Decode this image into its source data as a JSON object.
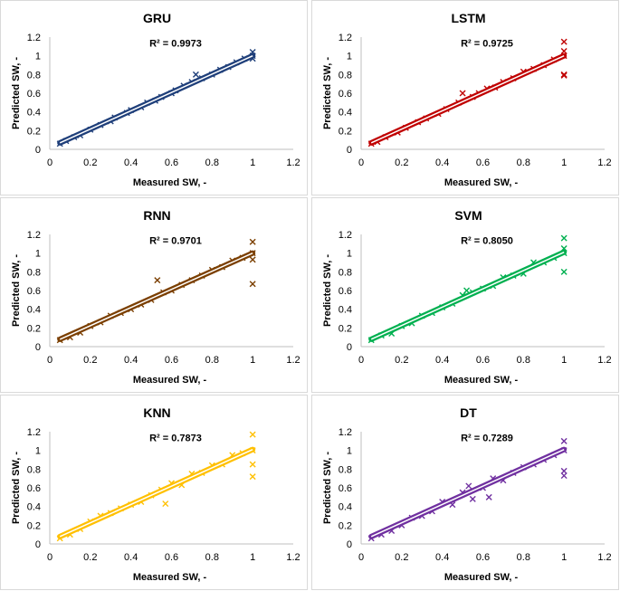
{
  "chart_data": [
    {
      "type": "scatter",
      "title": "GRU",
      "xlabel": "Measured SW, -",
      "ylabel": "Predicted SW, -",
      "xlim": [
        0,
        1.2
      ],
      "ylim": [
        0,
        1.2
      ],
      "xticks": [
        "0",
        "0.2",
        "0.4",
        "0.6",
        "0.8",
        "1",
        "1.2"
      ],
      "yticks": [
        "0",
        "0.2",
        "0.4",
        "0.6",
        "0.8",
        "1",
        "1.2"
      ],
      "r2_label": "R² = 0.9973",
      "r2": 0.9973,
      "color": "#1f3f7a",
      "trendline": {
        "slope": 0.98,
        "intercept": 0.02
      },
      "points": [
        [
          0.05,
          0.06
        ],
        [
          0.08,
          0.09
        ],
        [
          0.12,
          0.13
        ],
        [
          0.15,
          0.15
        ],
        [
          0.2,
          0.21
        ],
        [
          0.25,
          0.26
        ],
        [
          0.3,
          0.3
        ],
        [
          0.32,
          0.34
        ],
        [
          0.38,
          0.39
        ],
        [
          0.4,
          0.42
        ],
        [
          0.45,
          0.45
        ],
        [
          0.48,
          0.5
        ],
        [
          0.52,
          0.52
        ],
        [
          0.55,
          0.56
        ],
        [
          0.6,
          0.6
        ],
        [
          0.62,
          0.63
        ],
        [
          0.66,
          0.68
        ],
        [
          0.7,
          0.72
        ],
        [
          0.72,
          0.8
        ],
        [
          0.75,
          0.76
        ],
        [
          0.8,
          0.8
        ],
        [
          0.84,
          0.85
        ],
        [
          0.88,
          0.88
        ],
        [
          0.92,
          0.93
        ],
        [
          0.96,
          0.97
        ],
        [
          1.0,
          1.0
        ],
        [
          1.0,
          1.04
        ],
        [
          1.0,
          0.97
        ]
      ]
    },
    {
      "type": "scatter",
      "title": "LSTM",
      "xlabel": "Measured SW, -",
      "ylabel": "Predicted SW, -",
      "xlim": [
        0,
        1.2
      ],
      "ylim": [
        0,
        1.2
      ],
      "xticks": [
        "0",
        "0.2",
        "0.4",
        "0.6",
        "0.8",
        "1",
        "1.2"
      ],
      "yticks": [
        "0",
        "0.2",
        "0.4",
        "0.6",
        "0.8",
        "1",
        "1.2"
      ],
      "r2_label": "R² = 0.9725",
      "r2": 0.9725,
      "color": "#c00000",
      "trendline": {
        "slope": 0.98,
        "intercept": 0.02
      },
      "points": [
        [
          0.05,
          0.06
        ],
        [
          0.08,
          0.08
        ],
        [
          0.12,
          0.13
        ],
        [
          0.18,
          0.18
        ],
        [
          0.22,
          0.23
        ],
        [
          0.28,
          0.29
        ],
        [
          0.32,
          0.33
        ],
        [
          0.38,
          0.38
        ],
        [
          0.42,
          0.43
        ],
        [
          0.48,
          0.5
        ],
        [
          0.5,
          0.6
        ],
        [
          0.55,
          0.56
        ],
        [
          0.58,
          0.6
        ],
        [
          0.62,
          0.65
        ],
        [
          0.66,
          0.66
        ],
        [
          0.7,
          0.72
        ],
        [
          0.75,
          0.76
        ],
        [
          0.8,
          0.83
        ],
        [
          0.85,
          0.86
        ],
        [
          0.9,
          0.9
        ],
        [
          0.95,
          0.96
        ],
        [
          1.0,
          1.0
        ],
        [
          1.0,
          1.15
        ],
        [
          1.0,
          0.79
        ],
        [
          1.0,
          0.8
        ],
        [
          1.0,
          1.05
        ]
      ]
    },
    {
      "type": "scatter",
      "title": "RNN",
      "xlabel": "Measured SW, -",
      "ylabel": "Predicted SW, -",
      "xlim": [
        0,
        1.2
      ],
      "ylim": [
        0,
        1.2
      ],
      "xticks": [
        "0",
        "0.2",
        "0.4",
        "0.6",
        "0.8",
        "1",
        "1.2"
      ],
      "yticks": [
        "0",
        "0.2",
        "0.4",
        "0.6",
        "0.8",
        "1",
        "1.2"
      ],
      "r2_label": "R² = 0.9701",
      "r2": 0.9701,
      "color": "#7b3f00",
      "trendline": {
        "slope": 0.97,
        "intercept": 0.03
      },
      "points": [
        [
          0.05,
          0.07
        ],
        [
          0.1,
          0.1
        ],
        [
          0.15,
          0.15
        ],
        [
          0.2,
          0.22
        ],
        [
          0.25,
          0.26
        ],
        [
          0.3,
          0.33
        ],
        [
          0.35,
          0.36
        ],
        [
          0.4,
          0.4
        ],
        [
          0.45,
          0.45
        ],
        [
          0.5,
          0.5
        ],
        [
          0.53,
          0.71
        ],
        [
          0.56,
          0.58
        ],
        [
          0.6,
          0.6
        ],
        [
          0.65,
          0.66
        ],
        [
          0.7,
          0.71
        ],
        [
          0.75,
          0.76
        ],
        [
          0.8,
          0.82
        ],
        [
          0.85,
          0.85
        ],
        [
          0.9,
          0.92
        ],
        [
          0.95,
          0.95
        ],
        [
          1.0,
          1.0
        ],
        [
          1.0,
          1.12
        ],
        [
          1.0,
          0.67
        ],
        [
          1.0,
          0.93
        ]
      ]
    },
    {
      "type": "scatter",
      "title": "SVM",
      "xlabel": "Measured SW, -",
      "ylabel": "Predicted SW, -",
      "xlim": [
        0,
        1.2
      ],
      "ylim": [
        0,
        1.2
      ],
      "xticks": [
        "0",
        "0.2",
        "0.4",
        "0.6",
        "0.8",
        "1",
        "1.2"
      ],
      "yticks": [
        "0",
        "0.2",
        "0.4",
        "0.6",
        "0.8",
        "1",
        "1.2"
      ],
      "r2_label": "R² = 0.8050",
      "r2": 0.805,
      "color": "#00b050",
      "trendline": {
        "slope": 0.98,
        "intercept": 0.03
      },
      "points": [
        [
          0.05,
          0.07
        ],
        [
          0.1,
          0.12
        ],
        [
          0.15,
          0.14
        ],
        [
          0.2,
          0.22
        ],
        [
          0.25,
          0.25
        ],
        [
          0.3,
          0.33
        ],
        [
          0.35,
          0.36
        ],
        [
          0.4,
          0.42
        ],
        [
          0.45,
          0.46
        ],
        [
          0.5,
          0.55
        ],
        [
          0.52,
          0.6
        ],
        [
          0.55,
          0.58
        ],
        [
          0.6,
          0.62
        ],
        [
          0.65,
          0.65
        ],
        [
          0.7,
          0.74
        ],
        [
          0.75,
          0.76
        ],
        [
          0.8,
          0.78
        ],
        [
          0.85,
          0.9
        ],
        [
          0.9,
          0.9
        ],
        [
          0.95,
          0.95
        ],
        [
          1.0,
          1.0
        ],
        [
          1.0,
          1.16
        ],
        [
          1.0,
          0.8
        ],
        [
          1.0,
          1.05
        ]
      ]
    },
    {
      "type": "scatter",
      "title": "KNN",
      "xlabel": "Measured SW, -",
      "ylabel": "Predicted SW, -",
      "xlim": [
        0,
        1.2
      ],
      "ylim": [
        0,
        1.2
      ],
      "xticks": [
        "0",
        "0.2",
        "0.4",
        "0.6",
        "0.8",
        "1",
        "1.2"
      ],
      "yticks": [
        "0",
        "0.2",
        "0.4",
        "0.6",
        "0.8",
        "1",
        "1.2"
      ],
      "r2_label": "R² = 0.7873",
      "r2": 0.7873,
      "color": "#ffc000",
      "trendline": {
        "slope": 0.98,
        "intercept": 0.03
      },
      "points": [
        [
          0.05,
          0.06
        ],
        [
          0.1,
          0.1
        ],
        [
          0.15,
          0.16
        ],
        [
          0.2,
          0.24
        ],
        [
          0.25,
          0.3
        ],
        [
          0.3,
          0.33
        ],
        [
          0.35,
          0.38
        ],
        [
          0.4,
          0.42
        ],
        [
          0.45,
          0.45
        ],
        [
          0.5,
          0.52
        ],
        [
          0.55,
          0.58
        ],
        [
          0.57,
          0.43
        ],
        [
          0.6,
          0.65
        ],
        [
          0.65,
          0.63
        ],
        [
          0.7,
          0.75
        ],
        [
          0.75,
          0.76
        ],
        [
          0.8,
          0.84
        ],
        [
          0.85,
          0.85
        ],
        [
          0.9,
          0.95
        ],
        [
          0.95,
          0.97
        ],
        [
          1.0,
          1.0
        ],
        [
          1.0,
          1.17
        ],
        [
          1.0,
          0.72
        ],
        [
          1.0,
          0.85
        ]
      ]
    },
    {
      "type": "scatter",
      "title": "DT",
      "xlabel": "Measured SW, -",
      "ylabel": "Predicted SW, -",
      "xlim": [
        0,
        1.2
      ],
      "ylim": [
        0,
        1.2
      ],
      "xticks": [
        "0",
        "0.2",
        "0.4",
        "0.6",
        "0.8",
        "1",
        "1.2"
      ],
      "yticks": [
        "0",
        "0.2",
        "0.4",
        "0.6",
        "0.8",
        "1",
        "1.2"
      ],
      "r2_label": "R² = 0.7289",
      "r2": 0.7289,
      "color": "#7030a0",
      "trendline": {
        "slope": 0.98,
        "intercept": 0.03
      },
      "points": [
        [
          0.05,
          0.06
        ],
        [
          0.1,
          0.1
        ],
        [
          0.15,
          0.14
        ],
        [
          0.2,
          0.2
        ],
        [
          0.25,
          0.28
        ],
        [
          0.3,
          0.3
        ],
        [
          0.35,
          0.35
        ],
        [
          0.4,
          0.45
        ],
        [
          0.45,
          0.42
        ],
        [
          0.5,
          0.55
        ],
        [
          0.53,
          0.62
        ],
        [
          0.55,
          0.48
        ],
        [
          0.6,
          0.6
        ],
        [
          0.63,
          0.5
        ],
        [
          0.65,
          0.7
        ],
        [
          0.7,
          0.68
        ],
        [
          0.75,
          0.76
        ],
        [
          0.8,
          0.82
        ],
        [
          0.85,
          0.85
        ],
        [
          0.9,
          0.9
        ],
        [
          0.95,
          0.95
        ],
        [
          1.0,
          1.0
        ],
        [
          1.0,
          1.1
        ],
        [
          1.0,
          0.73
        ],
        [
          1.0,
          0.78
        ]
      ]
    }
  ]
}
